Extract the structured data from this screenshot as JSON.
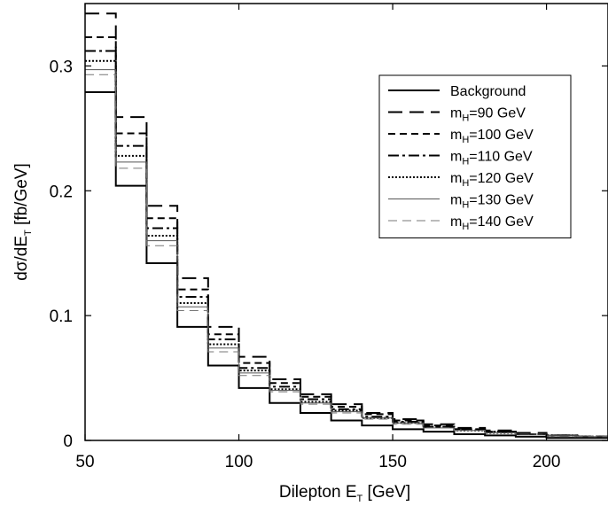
{
  "chart_data": {
    "type": "line",
    "step": true,
    "x_edges": [
      50,
      60,
      70,
      80,
      90,
      100,
      110,
      120,
      130,
      140,
      150,
      160,
      170,
      180,
      190,
      200,
      210,
      220
    ],
    "xlim": [
      50,
      220
    ],
    "ylim": [
      0,
      0.35
    ],
    "xticks": [
      50,
      100,
      150,
      200
    ],
    "xtick_labels": [
      "50",
      "100",
      "150",
      "200"
    ],
    "yticks": [
      0,
      0.1,
      0.2,
      0.3
    ],
    "ytick_labels": [
      "0",
      "0.1",
      "0.2",
      "0.3"
    ],
    "xlabel": {
      "main": "Dilepton E",
      "sub": "T",
      "unit": "[GeV]"
    },
    "ylabel": {
      "main": "dσ/dE",
      "sub": "T",
      "unit": "[fb/GeV]"
    },
    "grid": false,
    "legend_position": "top-right",
    "series": [
      {
        "name": "Background",
        "name_main": "Background",
        "name_sub": "",
        "name_rest": "",
        "style": "solid",
        "stroke": "#000000",
        "width": 2.0,
        "values": [
          0.279,
          0.204,
          0.142,
          0.091,
          0.06,
          0.042,
          0.03,
          0.022,
          0.016,
          0.012,
          0.009,
          0.007,
          0.005,
          0.004,
          0.003,
          0.002,
          0.002
        ]
      },
      {
        "name": "mH=90 GeV",
        "name_main": "m",
        "name_sub": "H",
        "name_rest": "=90 GeV",
        "style": "longdash",
        "stroke": "#000000",
        "width": 2.0,
        "values": [
          0.342,
          0.259,
          0.188,
          0.13,
          0.091,
          0.067,
          0.049,
          0.037,
          0.029,
          0.022,
          0.017,
          0.013,
          0.01,
          0.008,
          0.006,
          0.004,
          0.003
        ]
      },
      {
        "name": "mH=100 GeV",
        "name_main": "m",
        "name_sub": "H",
        "name_rest": "=100 GeV",
        "style": "shortdash",
        "stroke": "#000000",
        "width": 2.0,
        "values": [
          0.323,
          0.246,
          0.178,
          0.121,
          0.085,
          0.062,
          0.046,
          0.035,
          0.027,
          0.021,
          0.016,
          0.012,
          0.009,
          0.007,
          0.005,
          0.004,
          0.003
        ]
      },
      {
        "name": "mH=110 GeV",
        "name_main": "m",
        "name_sub": "H",
        "name_rest": "=110 GeV",
        "style": "dashdot",
        "stroke": "#000000",
        "width": 2.0,
        "values": [
          0.312,
          0.236,
          0.17,
          0.115,
          0.081,
          0.058,
          0.043,
          0.033,
          0.025,
          0.019,
          0.015,
          0.011,
          0.009,
          0.007,
          0.005,
          0.004,
          0.003
        ]
      },
      {
        "name": "mH=120 GeV",
        "name_main": "m",
        "name_sub": "H",
        "name_rest": "=120 GeV",
        "style": "dotted",
        "stroke": "#000000",
        "width": 2.0,
        "values": [
          0.304,
          0.228,
          0.164,
          0.11,
          0.077,
          0.056,
          0.041,
          0.031,
          0.024,
          0.018,
          0.014,
          0.011,
          0.008,
          0.006,
          0.005,
          0.004,
          0.003
        ]
      },
      {
        "name": "mH=130 GeV",
        "name_main": "m",
        "name_sub": "H",
        "name_rest": "=130 GeV",
        "style": "thin",
        "stroke": "#555555",
        "width": 1.0,
        "values": [
          0.297,
          0.223,
          0.16,
          0.107,
          0.074,
          0.054,
          0.04,
          0.03,
          0.023,
          0.018,
          0.014,
          0.01,
          0.008,
          0.006,
          0.005,
          0.004,
          0.003
        ]
      },
      {
        "name": "mH=140 GeV",
        "name_main": "m",
        "name_sub": "H",
        "name_rest": "=140 GeV",
        "style": "thindash",
        "stroke": "#777777",
        "width": 1.0,
        "values": [
          0.293,
          0.218,
          0.156,
          0.104,
          0.071,
          0.052,
          0.039,
          0.029,
          0.022,
          0.017,
          0.013,
          0.01,
          0.008,
          0.006,
          0.005,
          0.003,
          0.003
        ]
      }
    ]
  }
}
